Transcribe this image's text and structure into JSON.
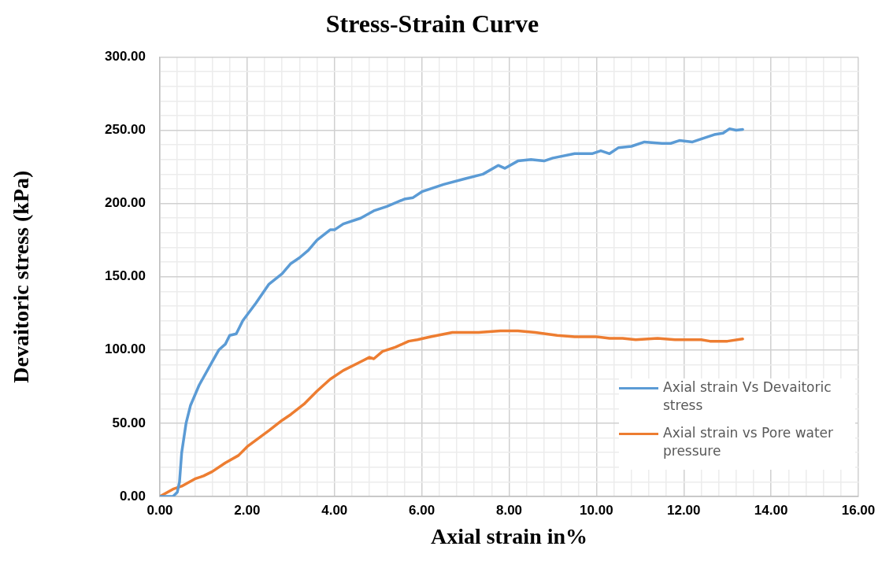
{
  "chart_data": {
    "type": "line",
    "title": "Stress-Strain Curve",
    "xlabel": "Axial strain in%",
    "ylabel": "Devaitoric stress (kPa)",
    "xlim": [
      0,
      16
    ],
    "ylim": [
      0,
      300
    ],
    "grid": true,
    "legend": "right",
    "marker": "none",
    "line_style": "solid",
    "xticks": [
      {
        "value": 0,
        "label": "0.00"
      },
      {
        "value": 0.4,
        "label": null
      },
      {
        "value": 0.8,
        "label": null
      },
      {
        "value": 1.2,
        "label": null
      },
      {
        "value": 1.6,
        "label": null
      },
      {
        "value": 2,
        "label": "2.00"
      },
      {
        "value": 2.4,
        "label": null
      },
      {
        "value": 2.8,
        "label": null
      },
      {
        "value": 3.2,
        "label": null
      },
      {
        "value": 3.6,
        "label": null
      },
      {
        "value": 4,
        "label": "4.00"
      },
      {
        "value": 4.4,
        "label": null
      },
      {
        "value": 4.8,
        "label": null
      },
      {
        "value": 5.2,
        "label": null
      },
      {
        "value": 5.6,
        "label": null
      },
      {
        "value": 6,
        "label": "6.00"
      },
      {
        "value": 6.4,
        "label": null
      },
      {
        "value": 6.8,
        "label": null
      },
      {
        "value": 7.2,
        "label": null
      },
      {
        "value": 7.6,
        "label": null
      },
      {
        "value": 8,
        "label": "8.00"
      },
      {
        "value": 8.4,
        "label": null
      },
      {
        "value": 8.8,
        "label": null
      },
      {
        "value": 9.2,
        "label": null
      },
      {
        "value": 9.6,
        "label": null
      },
      {
        "value": 10,
        "label": "10.00"
      },
      {
        "value": 10.4,
        "label": null
      },
      {
        "value": 10.8,
        "label": null
      },
      {
        "value": 11.2,
        "label": null
      },
      {
        "value": 11.6,
        "label": null
      },
      {
        "value": 12,
        "label": "12.00"
      },
      {
        "value": 12.4,
        "label": null
      },
      {
        "value": 12.8,
        "label": null
      },
      {
        "value": 13.2,
        "label": null
      },
      {
        "value": 13.6,
        "label": null
      },
      {
        "value": 14,
        "label": "14.00"
      },
      {
        "value": 14.4,
        "label": null
      },
      {
        "value": 14.8,
        "label": null
      },
      {
        "value": 15.2,
        "label": null
      },
      {
        "value": 15.6,
        "label": null
      },
      {
        "value": 16,
        "label": "16.00"
      }
    ],
    "yticks": [
      {
        "value": 0,
        "label": "0.00"
      },
      {
        "value": 10,
        "label": null
      },
      {
        "value": 20,
        "label": null
      },
      {
        "value": 30,
        "label": null
      },
      {
        "value": 40,
        "label": null
      },
      {
        "value": 50,
        "label": "50.00"
      },
      {
        "value": 60,
        "label": null
      },
      {
        "value": 70,
        "label": null
      },
      {
        "value": 80,
        "label": null
      },
      {
        "value": 90,
        "label": null
      },
      {
        "value": 100,
        "label": "100.00"
      },
      {
        "value": 110,
        "label": null
      },
      {
        "value": 120,
        "label": null
      },
      {
        "value": 130,
        "label": null
      },
      {
        "value": 140,
        "label": null
      },
      {
        "value": 150,
        "label": "150.00"
      },
      {
        "value": 160,
        "label": null
      },
      {
        "value": 170,
        "label": null
      },
      {
        "value": 180,
        "label": null
      },
      {
        "value": 190,
        "label": null
      },
      {
        "value": 200,
        "label": "200.00"
      },
      {
        "value": 210,
        "label": null
      },
      {
        "value": 220,
        "label": null
      },
      {
        "value": 230,
        "label": null
      },
      {
        "value": 240,
        "label": null
      },
      {
        "value": 250,
        "label": "250.00"
      },
      {
        "value": 260,
        "label": null
      },
      {
        "value": 270,
        "label": null
      },
      {
        "value": 280,
        "label": null
      },
      {
        "value": 290,
        "label": null
      },
      {
        "value": 300,
        "label": "300.00"
      }
    ],
    "series": [
      {
        "name": "Axial strain Vs Devaitoric stress",
        "color": "#5b9bd5",
        "x": [
          0,
          0.3,
          0.4,
          0.45,
          0.5,
          0.6,
          0.7,
          0.9,
          1.2,
          1.35,
          1.5,
          1.6,
          1.75,
          1.9,
          2.2,
          2.5,
          2.8,
          3.0,
          3.2,
          3.4,
          3.6,
          3.9,
          4.0,
          4.2,
          4.6,
          4.9,
          5.2,
          5.6,
          5.8,
          6.0,
          6.5,
          7.0,
          7.4,
          7.75,
          7.9,
          8.2,
          8.5,
          8.8,
          9.0,
          9.5,
          9.9,
          10.1,
          10.3,
          10.5,
          10.8,
          11.1,
          11.5,
          11.7,
          11.9,
          12.2,
          12.4,
          12.7,
          12.9,
          13.05,
          13.2,
          13.35
        ],
        "values": [
          0,
          0,
          3,
          10,
          30,
          50,
          62,
          76,
          92,
          100,
          104,
          110,
          111,
          120,
          132,
          145,
          152,
          159,
          163,
          168,
          175,
          182,
          182,
          186,
          190,
          195,
          198,
          203,
          204,
          208,
          213,
          217,
          220,
          226,
          224,
          229,
          230,
          229,
          231,
          234,
          234,
          236,
          234,
          238,
          239,
          242,
          241,
          241,
          243,
          242,
          244,
          247,
          248,
          251,
          250,
          250.5
        ]
      },
      {
        "name": "Axial strain vs Pore water pressure",
        "color": "#ed7d31",
        "x": [
          0,
          0.3,
          0.5,
          0.8,
          1.0,
          1.2,
          1.5,
          1.8,
          2.0,
          2.5,
          2.8,
          3.0,
          3.3,
          3.6,
          3.9,
          4.2,
          4.6,
          4.8,
          4.9,
          5.1,
          5.4,
          5.7,
          5.9,
          6.2,
          6.7,
          7.3,
          7.8,
          8.2,
          8.6,
          9.1,
          9.5,
          10.0,
          10.3,
          10.6,
          10.9,
          11.4,
          11.8,
          12.0,
          12.4,
          12.6,
          13.0,
          13.35
        ],
        "values": [
          0,
          5,
          7,
          12,
          14,
          17,
          23,
          28,
          34,
          45,
          52,
          56,
          63,
          72,
          80,
          86,
          92,
          95,
          94,
          99,
          102,
          106,
          107,
          109,
          112,
          112,
          113,
          113,
          112,
          110,
          109,
          109,
          108,
          108,
          107,
          108,
          107,
          107,
          107,
          106,
          106,
          107.5
        ]
      }
    ]
  }
}
